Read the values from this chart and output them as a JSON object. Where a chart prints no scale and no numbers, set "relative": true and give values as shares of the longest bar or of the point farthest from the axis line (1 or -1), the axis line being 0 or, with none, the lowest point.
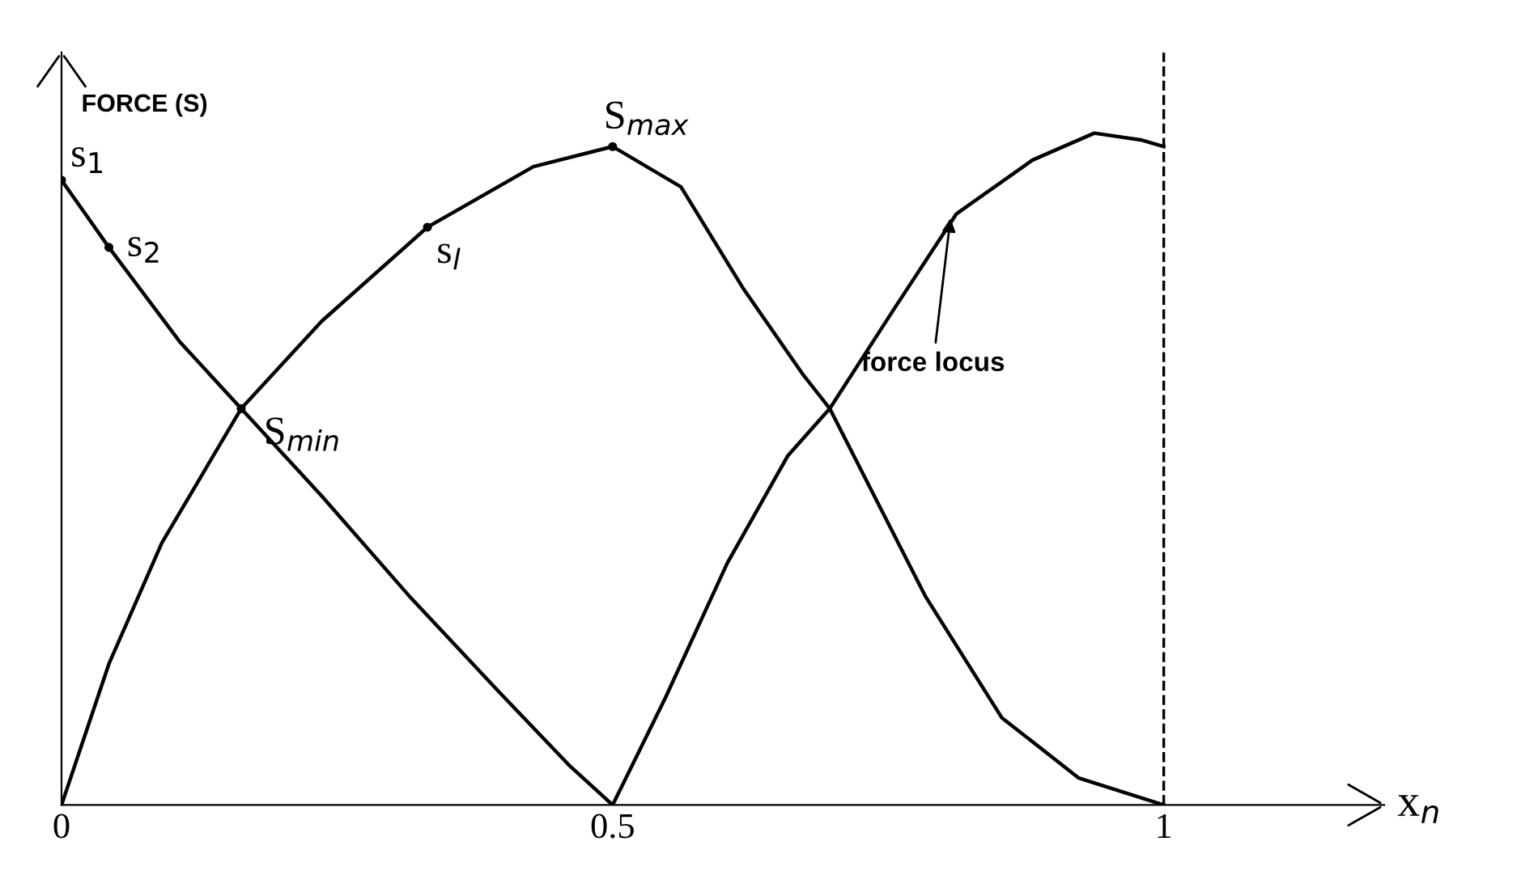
{
  "chart_data": {
    "type": "line",
    "relative": true,
    "ylabel": "FORCE (S)",
    "xlabel": "x$_{n}$",
    "xlim": [
      0,
      1.2
    ],
    "xticks": [
      0,
      0.5,
      1
    ],
    "tick_labels": "x",
    "grid": false,
    "marker": "none",
    "line_style": "solid",
    "series": [
      {
        "color": "#000000",
        "x": [
          0,
          0.043,
          0.107,
          0.163,
          0.236,
          0.316,
          0.396,
          0.46,
          0.5
        ],
        "values": [
          0.93,
          0.83,
          0.69,
          0.59,
          0.46,
          0.31,
          0.17,
          0.06,
          0
        ]
      },
      {
        "color": "#000000",
        "x": [
          0,
          0.043,
          0.091,
          0.163,
          0.236,
          0.332,
          0.428,
          0.5,
          0.562,
          0.618,
          0.673,
          0.697,
          0.784,
          0.853,
          0.923,
          1
        ],
        "values": [
          0,
          0.21,
          0.39,
          0.59,
          0.72,
          0.86,
          0.95,
          0.98,
          0.92,
          0.77,
          0.64,
          0.59,
          0.31,
          0.13,
          0.04,
          0
        ]
      },
      {
        "color": "#000000",
        "x": [
          0.5,
          0.548,
          0.604,
          0.659,
          0.697,
          0.756,
          0.812,
          0.881,
          0.937,
          0.979,
          1
        ],
        "values": [
          0,
          0.16,
          0.36,
          0.52,
          0.59,
          0.74,
          0.88,
          0.96,
          1,
          0.99,
          0.98
        ]
      }
    ],
    "ref_lines": [
      {
        "axis": "x",
        "value": 1,
        "color": "#000000",
        "line_style": "dashed"
      }
    ],
    "annotations": [
      {
        "text": "s$_{1}$",
        "x": 0,
        "y": 0.93
      },
      {
        "text": "s$_{2}$",
        "x": 0.043,
        "y": 0.83
      },
      {
        "text": "S$_{min}$",
        "x": 0.163,
        "y": 0.59
      },
      {
        "text": "S$_{max}$",
        "x": 0.5,
        "y": 0.98
      },
      {
        "text": "s$_{l}$",
        "x": 0.332,
        "y": 0.86
      },
      {
        "text": "force locus",
        "x": 0.807,
        "y": 0.88
      }
    ]
  }
}
